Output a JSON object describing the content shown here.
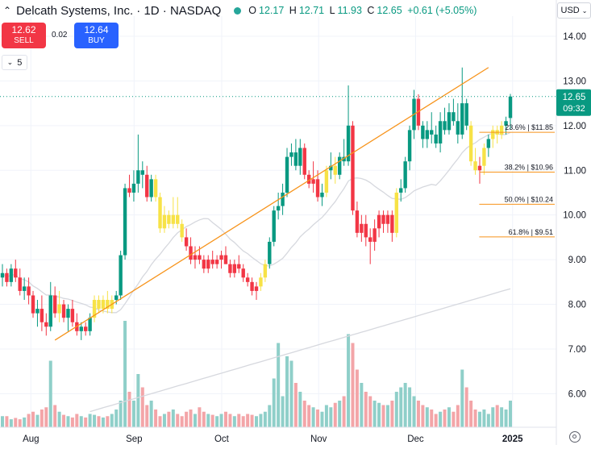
{
  "header": {
    "title": "Delcath Systems, Inc. · 1D · NASDAQ",
    "ohlc": {
      "o_label": "O",
      "o": "12.17",
      "h_label": "H",
      "h": "12.71",
      "l_label": "L",
      "l": "11.93",
      "c_label": "C",
      "c": "12.65",
      "change": "+0.61 (+5.05%)"
    },
    "currency": "USD"
  },
  "trade": {
    "sell_price": "12.62",
    "sell_label": "SELL",
    "spread": "0.02",
    "buy_price": "12.64",
    "buy_label": "BUY"
  },
  "indicators_count": "5",
  "price_label": {
    "value": "12.65",
    "time": "09:32"
  },
  "colors": {
    "up": "#089981",
    "down": "#f23645",
    "neutral": "#f7e246",
    "trendline": "#f7931a",
    "ma_short": "#d1d4dc",
    "ma_long": "#d1d4dc"
  },
  "chart_data": {
    "type": "candlestick",
    "y_axis": {
      "ticks": [
        6.0,
        7.0,
        8.0,
        9.0,
        10.0,
        11.0,
        12.0,
        13.0,
        14.0
      ],
      "ylim": [
        5.25,
        14.45
      ]
    },
    "x_axis": {
      "labels": [
        "Aug",
        "Sep",
        "Oct",
        "Nov",
        "Dec",
        "2025"
      ],
      "label_dates": [
        "2024-08-01",
        "2024-09-03",
        "2024-10-01",
        "2024-11-01",
        "2024-12-02",
        "2025-01-02"
      ]
    },
    "candles": [
      [
        8.6,
        8.9,
        8.4,
        8.7,
        0.25,
        "u"
      ],
      [
        8.7,
        8.8,
        8.4,
        8.5,
        0.25,
        "d"
      ],
      [
        8.5,
        8.9,
        8.4,
        8.8,
        0.18,
        "u"
      ],
      [
        8.8,
        9.0,
        8.5,
        8.6,
        0.21,
        "d"
      ],
      [
        8.6,
        8.8,
        8.2,
        8.3,
        0.18,
        "d"
      ],
      [
        8.3,
        8.6,
        8.1,
        8.4,
        0.22,
        "u"
      ],
      [
        8.4,
        8.6,
        8.0,
        8.2,
        0.3,
        "d"
      ],
      [
        8.2,
        8.3,
        7.7,
        7.8,
        0.35,
        "d"
      ],
      [
        7.8,
        8.1,
        7.5,
        7.9,
        0.28,
        "u"
      ],
      [
        7.9,
        8.2,
        7.4,
        7.6,
        0.4,
        "d"
      ],
      [
        7.6,
        7.8,
        7.3,
        7.5,
        0.45,
        "d"
      ],
      [
        7.5,
        8.5,
        7.4,
        8.2,
        1.5,
        "u"
      ],
      [
        8.2,
        8.4,
        7.7,
        7.8,
        0.5,
        "d"
      ],
      [
        7.8,
        8.3,
        7.6,
        8.0,
        0.35,
        "n"
      ],
      [
        8.0,
        8.1,
        7.6,
        7.7,
        0.28,
        "d"
      ],
      [
        7.7,
        8.0,
        7.4,
        7.9,
        0.25,
        "u"
      ],
      [
        7.9,
        8.1,
        7.5,
        7.6,
        0.22,
        "d"
      ],
      [
        7.6,
        7.8,
        7.3,
        7.4,
        0.3,
        "d"
      ],
      [
        7.4,
        7.6,
        7.2,
        7.5,
        0.25,
        "u"
      ],
      [
        7.5,
        7.6,
        7.3,
        7.4,
        0.22,
        "d"
      ],
      [
        7.4,
        7.8,
        7.3,
        7.7,
        0.3,
        "u"
      ],
      [
        7.7,
        8.2,
        7.6,
        8.1,
        0.28,
        "n"
      ],
      [
        8.1,
        8.2,
        7.8,
        7.9,
        0.25,
        "n"
      ],
      [
        7.9,
        8.2,
        7.8,
        8.1,
        0.22,
        "n"
      ],
      [
        8.1,
        8.3,
        7.8,
        7.9,
        0.25,
        "n"
      ],
      [
        7.9,
        8.2,
        7.8,
        8.1,
        0.3,
        "n"
      ],
      [
        8.1,
        8.3,
        8.0,
        8.2,
        0.4,
        "u"
      ],
      [
        8.2,
        9.2,
        8.1,
        9.1,
        0.6,
        "u"
      ],
      [
        9.1,
        10.7,
        9.0,
        10.6,
        2.4,
        "u"
      ],
      [
        10.6,
        10.9,
        10.4,
        10.5,
        0.8,
        "d"
      ],
      [
        10.5,
        11.0,
        10.3,
        10.7,
        0.6,
        "u"
      ],
      [
        10.7,
        11.8,
        10.5,
        11.0,
        1.2,
        "u"
      ],
      [
        11.0,
        11.2,
        10.6,
        10.9,
        0.9,
        "u"
      ],
      [
        10.9,
        11.1,
        10.3,
        10.4,
        0.5,
        "d"
      ],
      [
        10.4,
        10.9,
        10.3,
        10.8,
        0.6,
        "u"
      ],
      [
        10.8,
        10.9,
        10.3,
        10.4,
        0.4,
        "n"
      ],
      [
        10.4,
        10.5,
        9.6,
        9.7,
        0.25,
        "n"
      ],
      [
        9.7,
        10.2,
        9.6,
        10.0,
        0.3,
        "n"
      ],
      [
        10.0,
        10.1,
        9.7,
        9.8,
        0.35,
        "n"
      ],
      [
        9.8,
        10.4,
        9.7,
        10.0,
        0.4,
        "n"
      ],
      [
        10.0,
        10.4,
        9.7,
        9.8,
        0.3,
        "n"
      ],
      [
        9.8,
        9.9,
        9.4,
        9.5,
        0.25,
        "n"
      ],
      [
        9.5,
        9.7,
        9.2,
        9.3,
        0.35,
        "d"
      ],
      [
        9.3,
        9.5,
        8.9,
        9.0,
        0.4,
        "d"
      ],
      [
        9.0,
        9.3,
        8.8,
        9.1,
        0.3,
        "d"
      ],
      [
        9.1,
        9.3,
        8.9,
        9.0,
        0.45,
        "d"
      ],
      [
        9.0,
        9.1,
        8.7,
        8.8,
        0.35,
        "d"
      ],
      [
        8.8,
        9.1,
        8.7,
        9.0,
        0.3,
        "d"
      ],
      [
        9.0,
        9.2,
        8.8,
        8.9,
        0.28,
        "d"
      ],
      [
        8.9,
        9.1,
        8.8,
        9.0,
        0.25,
        "d"
      ],
      [
        9.0,
        9.2,
        8.8,
        9.1,
        0.3,
        "d"
      ],
      [
        9.1,
        9.3,
        8.9,
        8.9,
        0.35,
        "d"
      ],
      [
        8.9,
        9.0,
        8.6,
        8.7,
        0.3,
        "d"
      ],
      [
        8.7,
        9.0,
        8.6,
        8.9,
        0.25,
        "d"
      ],
      [
        8.9,
        9.1,
        8.7,
        8.8,
        0.3,
        "d"
      ],
      [
        8.8,
        8.9,
        8.5,
        8.6,
        0.25,
        "d"
      ],
      [
        8.6,
        8.7,
        8.4,
        8.5,
        0.3,
        "d"
      ],
      [
        8.5,
        8.6,
        8.2,
        8.3,
        0.28,
        "d"
      ],
      [
        8.3,
        8.5,
        8.1,
        8.4,
        0.25,
        "d"
      ],
      [
        8.4,
        8.7,
        8.3,
        8.6,
        0.3,
        "n"
      ],
      [
        8.6,
        9.0,
        8.5,
        8.9,
        0.35,
        "n"
      ],
      [
        8.9,
        9.5,
        8.8,
        9.4,
        0.5,
        "u"
      ],
      [
        9.4,
        10.2,
        9.3,
        10.1,
        1.1,
        "u"
      ],
      [
        10.1,
        10.5,
        9.9,
        10.2,
        1.9,
        "u"
      ],
      [
        10.2,
        10.7,
        10.0,
        10.5,
        0.7,
        "u"
      ],
      [
        10.5,
        11.5,
        10.4,
        11.3,
        1.6,
        "u"
      ],
      [
        11.3,
        11.6,
        11.1,
        11.4,
        1.5,
        "u"
      ],
      [
        11.4,
        11.7,
        11.0,
        11.1,
        1.0,
        "u"
      ],
      [
        11.1,
        11.7,
        10.9,
        11.5,
        0.8,
        "u"
      ],
      [
        11.5,
        11.6,
        10.8,
        10.9,
        0.6,
        "d"
      ],
      [
        10.9,
        11.0,
        10.6,
        10.7,
        0.5,
        "d"
      ],
      [
        10.7,
        11.2,
        10.5,
        10.8,
        0.45,
        "d"
      ],
      [
        10.8,
        11.0,
        10.3,
        10.4,
        0.4,
        "d"
      ],
      [
        10.4,
        10.7,
        10.2,
        10.5,
        0.35,
        "u"
      ],
      [
        10.5,
        11.1,
        10.4,
        11.0,
        0.5,
        "n"
      ],
      [
        11.0,
        11.4,
        10.8,
        11.1,
        0.45,
        "u"
      ],
      [
        11.1,
        11.3,
        10.7,
        10.9,
        0.55,
        "n"
      ],
      [
        10.9,
        11.4,
        10.8,
        11.3,
        0.6,
        "u"
      ],
      [
        11.3,
        11.7,
        11.1,
        11.2,
        0.7,
        "u"
      ],
      [
        11.2,
        12.9,
        11.1,
        12.0,
        2.1,
        "u"
      ],
      [
        12.0,
        12.1,
        10.0,
        10.1,
        1.9,
        "d"
      ],
      [
        10.1,
        10.3,
        9.5,
        9.6,
        1.3,
        "d"
      ],
      [
        9.6,
        10.0,
        9.4,
        9.8,
        1.0,
        "d"
      ],
      [
        9.8,
        10.0,
        9.3,
        9.5,
        0.8,
        "d"
      ],
      [
        9.5,
        9.7,
        8.9,
        9.4,
        0.7,
        "d"
      ],
      [
        9.4,
        9.9,
        9.2,
        9.7,
        0.6,
        "d"
      ],
      [
        9.7,
        10.1,
        9.5,
        10.0,
        0.55,
        "d"
      ],
      [
        10.0,
        10.1,
        9.6,
        9.8,
        0.5,
        "d"
      ],
      [
        9.8,
        10.1,
        9.6,
        10.0,
        0.5,
        "d"
      ],
      [
        10.0,
        10.1,
        9.4,
        9.6,
        0.6,
        "d"
      ],
      [
        9.6,
        10.6,
        9.5,
        10.5,
        0.8,
        "n"
      ],
      [
        10.5,
        10.8,
        10.3,
        10.6,
        0.9,
        "u"
      ],
      [
        10.6,
        11.3,
        10.5,
        11.2,
        1.0,
        "u"
      ],
      [
        11.2,
        12.0,
        11.0,
        11.9,
        0.9,
        "u"
      ],
      [
        11.9,
        12.8,
        11.7,
        12.6,
        0.7,
        "u"
      ],
      [
        12.6,
        12.7,
        11.9,
        12.0,
        0.6,
        "d"
      ],
      [
        12.0,
        12.1,
        11.5,
        11.7,
        0.5,
        "u"
      ],
      [
        11.7,
        12.1,
        11.5,
        11.9,
        0.45,
        "u"
      ],
      [
        11.9,
        12.3,
        11.6,
        11.8,
        0.4,
        "u"
      ],
      [
        11.8,
        12.0,
        11.5,
        11.6,
        0.3,
        "u"
      ],
      [
        11.6,
        12.3,
        11.4,
        12.1,
        0.35,
        "u"
      ],
      [
        12.1,
        12.4,
        11.8,
        11.9,
        0.4,
        "u"
      ],
      [
        11.9,
        12.5,
        11.8,
        12.3,
        0.45,
        "u"
      ],
      [
        12.3,
        12.6,
        12.0,
        12.1,
        0.35,
        "u"
      ],
      [
        12.1,
        12.5,
        11.6,
        11.8,
        0.5,
        "u"
      ],
      [
        11.8,
        13.3,
        11.7,
        12.5,
        1.3,
        "u"
      ],
      [
        12.5,
        12.6,
        11.9,
        12.0,
        0.9,
        "u"
      ],
      [
        12.0,
        12.1,
        11.1,
        11.2,
        0.6,
        "n"
      ],
      [
        11.2,
        11.5,
        10.9,
        11.0,
        0.4,
        "n"
      ],
      [
        11.0,
        11.3,
        10.7,
        11.1,
        0.35,
        "d"
      ],
      [
        11.1,
        11.6,
        10.9,
        11.5,
        0.4,
        "n"
      ],
      [
        11.5,
        11.8,
        11.3,
        11.7,
        0.3,
        "u"
      ],
      [
        11.7,
        12.0,
        11.5,
        11.9,
        0.45,
        "n"
      ],
      [
        11.9,
        12.0,
        11.6,
        11.8,
        0.5,
        "n"
      ],
      [
        11.8,
        12.1,
        11.7,
        12.0,
        0.45,
        "n"
      ],
      [
        12.0,
        12.2,
        11.8,
        12.1,
        0.4,
        "u"
      ],
      [
        12.17,
        12.71,
        11.93,
        12.65,
        0.6,
        "u"
      ]
    ],
    "trendline": [
      [
        12,
        7.2
      ],
      [
        111,
        13.3
      ]
    ],
    "fib_levels": [
      {
        "label": "23.6% | $11.85",
        "value": 11.85,
        "start": 110
      },
      {
        "label": "38.2% | $10.96",
        "value": 10.96,
        "start": 110
      },
      {
        "label": "50.0% | $10.24",
        "value": 10.24,
        "start": 110
      },
      {
        "label": "61.8% | $9.51",
        "value": 9.51,
        "start": 110
      }
    ],
    "current_price": 12.65
  }
}
